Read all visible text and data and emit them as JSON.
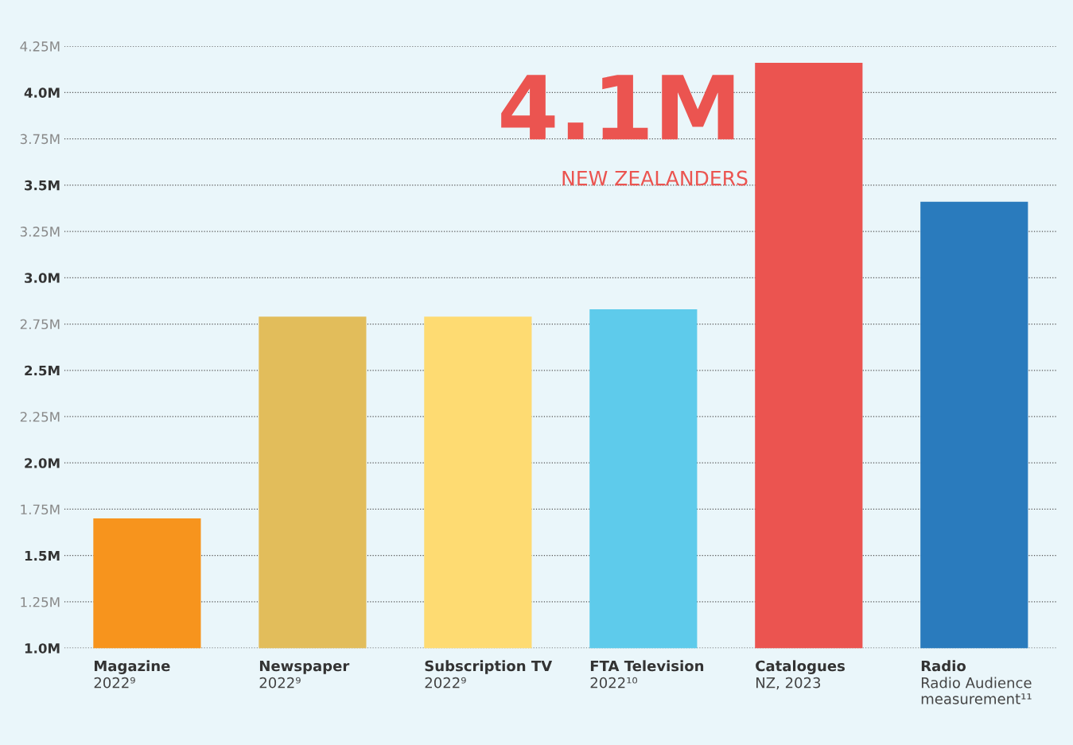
{
  "chart_data": {
    "type": "bar",
    "categories": [
      "Magazine",
      "Newspaper",
      "Subscription TV",
      "FTA Television",
      "Catalogues",
      "Radio"
    ],
    "values": [
      1.7,
      2.79,
      2.79,
      2.83,
      4.16,
      3.41
    ],
    "colors": [
      "#f7941d",
      "#e2bd5b",
      "#fedb72",
      "#5ecbeb",
      "#eb5450",
      "#2a7bbd"
    ],
    "ylim": [
      1.0,
      4.25
    ],
    "yticks": [
      {
        "value": 1.0,
        "label": "1.0M"
      },
      {
        "value": 1.25,
        "label": "1.25M"
      },
      {
        "value": 1.5,
        "label": "1.5M"
      },
      {
        "value": 1.75,
        "label": "1.75M"
      },
      {
        "value": 2.0,
        "label": "2.0M"
      },
      {
        "value": 2.25,
        "label": "2.25M"
      },
      {
        "value": 2.5,
        "label": "2.5M"
      },
      {
        "value": 2.75,
        "label": "2.75M"
      },
      {
        "value": 3.0,
        "label": "3.0M"
      },
      {
        "value": 3.25,
        "label": "3.25M"
      },
      {
        "value": 3.5,
        "label": "3.5M"
      },
      {
        "value": 3.75,
        "label": "3.75M"
      },
      {
        "value": 4.0,
        "label": "4.0M"
      },
      {
        "value": 4.25,
        "label": "4.25M"
      }
    ],
    "grid": "y",
    "annotations": [
      "2022⁹",
      "2022⁹",
      "2022⁹",
      "2022¹⁰",
      "NZ, 2023",
      "Radio Audience\nmeasurement¹¹",
      "4.1M",
      "NEW ZEALANDERS"
    ]
  }
}
